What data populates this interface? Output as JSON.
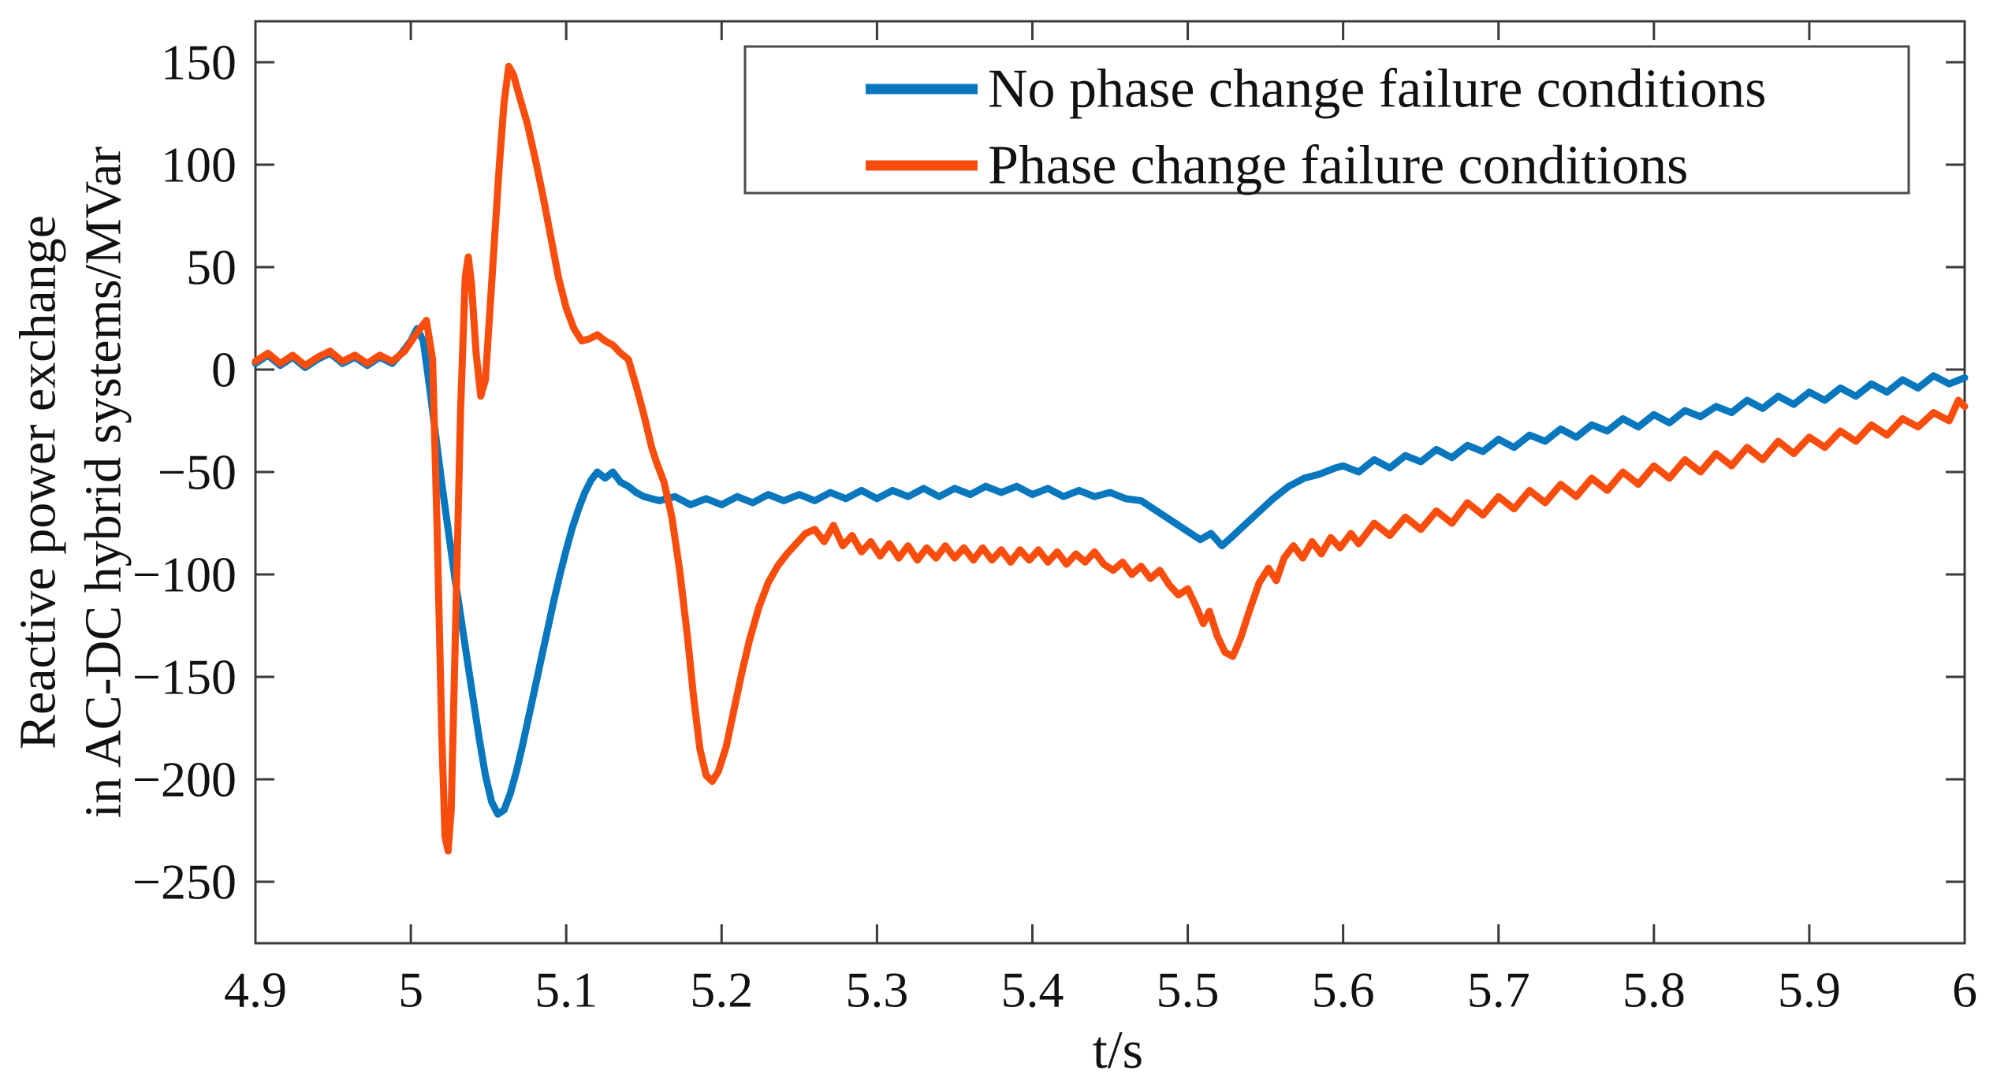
{
  "figure": {
    "background": "#ffffff",
    "frame_color": "#3a3a3a",
    "text_color": "#111111"
  },
  "chart_data": {
    "type": "line",
    "title": "",
    "xlabel": "t/s",
    "ylabel_lines": [
      "Reactive power exchange",
      "in AC-DC hybrid systems/MVar"
    ],
    "xlim": [
      4.9,
      6.0
    ],
    "ylim": [
      -280,
      170
    ],
    "grid": false,
    "legend_position": "top-right-inside",
    "x_ticks": [
      4.9,
      5.0,
      5.1,
      5.2,
      5.3,
      5.4,
      5.5,
      5.6,
      5.7,
      5.8,
      5.9,
      6.0
    ],
    "x_tick_labels": [
      "4.9",
      "5",
      "5.1",
      "5.2",
      "5.3",
      "5.4",
      "5.5",
      "5.6",
      "5.7",
      "5.8",
      "5.9",
      "6"
    ],
    "y_ticks": [
      150,
      100,
      50,
      0,
      -50,
      -100,
      -150,
      -200,
      -250
    ],
    "y_tick_labels": [
      "150",
      "100",
      "50",
      "0",
      "-50",
      "-100",
      "-150",
      "-200",
      "-250"
    ],
    "series": [
      {
        "name": "No phase change failure conditions",
        "color": "#0877BD",
        "points": [
          [
            4.9,
            3
          ],
          [
            4.908,
            7
          ],
          [
            4.916,
            2
          ],
          [
            4.924,
            6
          ],
          [
            4.932,
            1
          ],
          [
            4.94,
            5
          ],
          [
            4.948,
            8
          ],
          [
            4.956,
            3
          ],
          [
            4.964,
            6
          ],
          [
            4.972,
            2
          ],
          [
            4.98,
            6
          ],
          [
            4.988,
            3
          ],
          [
            4.994,
            8
          ],
          [
            5.0,
            14
          ],
          [
            5.004,
            20
          ],
          [
            5.008,
            14
          ],
          [
            5.012,
            -8
          ],
          [
            5.016,
            -32
          ],
          [
            5.02,
            -56
          ],
          [
            5.024,
            -78
          ],
          [
            5.028,
            -100
          ],
          [
            5.032,
            -120
          ],
          [
            5.036,
            -140
          ],
          [
            5.04,
            -160
          ],
          [
            5.044,
            -180
          ],
          [
            5.048,
            -198
          ],
          [
            5.052,
            -211
          ],
          [
            5.056,
            -217
          ],
          [
            5.06,
            -215
          ],
          [
            5.064,
            -207
          ],
          [
            5.068,
            -196
          ],
          [
            5.072,
            -183
          ],
          [
            5.076,
            -169
          ],
          [
            5.08,
            -155
          ],
          [
            5.084,
            -141
          ],
          [
            5.088,
            -127
          ],
          [
            5.092,
            -113
          ],
          [
            5.096,
            -100
          ],
          [
            5.1,
            -88
          ],
          [
            5.104,
            -77
          ],
          [
            5.108,
            -68
          ],
          [
            5.112,
            -60
          ],
          [
            5.116,
            -54
          ],
          [
            5.12,
            -50
          ],
          [
            5.125,
            -53
          ],
          [
            5.13,
            -50
          ],
          [
            5.135,
            -55
          ],
          [
            5.14,
            -57
          ],
          [
            5.145,
            -60
          ],
          [
            5.15,
            -62
          ],
          [
            5.16,
            -64
          ],
          [
            5.17,
            -62
          ],
          [
            5.18,
            -66
          ],
          [
            5.19,
            -63
          ],
          [
            5.2,
            -66
          ],
          [
            5.21,
            -62
          ],
          [
            5.22,
            -65
          ],
          [
            5.23,
            -61
          ],
          [
            5.24,
            -64
          ],
          [
            5.25,
            -61
          ],
          [
            5.26,
            -64
          ],
          [
            5.27,
            -60
          ],
          [
            5.28,
            -63
          ],
          [
            5.29,
            -59
          ],
          [
            5.3,
            -63
          ],
          [
            5.31,
            -59
          ],
          [
            5.32,
            -62
          ],
          [
            5.33,
            -58
          ],
          [
            5.34,
            -62
          ],
          [
            5.35,
            -58
          ],
          [
            5.36,
            -61
          ],
          [
            5.37,
            -57
          ],
          [
            5.38,
            -60
          ],
          [
            5.39,
            -57
          ],
          [
            5.4,
            -61
          ],
          [
            5.41,
            -58
          ],
          [
            5.42,
            -62
          ],
          [
            5.43,
            -59
          ],
          [
            5.44,
            -62
          ],
          [
            5.45,
            -60
          ],
          [
            5.46,
            -63
          ],
          [
            5.47,
            -64
          ],
          [
            5.48,
            -69
          ],
          [
            5.49,
            -74
          ],
          [
            5.5,
            -79
          ],
          [
            5.508,
            -83
          ],
          [
            5.515,
            -80
          ],
          [
            5.522,
            -86
          ],
          [
            5.528,
            -82
          ],
          [
            5.535,
            -77
          ],
          [
            5.545,
            -70
          ],
          [
            5.555,
            -63
          ],
          [
            5.565,
            -57
          ],
          [
            5.575,
            -53
          ],
          [
            5.585,
            -51
          ],
          [
            5.595,
            -48
          ],
          [
            5.6,
            -47
          ],
          [
            5.61,
            -50
          ],
          [
            5.62,
            -44
          ],
          [
            5.63,
            -48
          ],
          [
            5.64,
            -42
          ],
          [
            5.65,
            -45
          ],
          [
            5.66,
            -39
          ],
          [
            5.67,
            -43
          ],
          [
            5.68,
            -37
          ],
          [
            5.69,
            -40
          ],
          [
            5.7,
            -34
          ],
          [
            5.71,
            -38
          ],
          [
            5.72,
            -32
          ],
          [
            5.73,
            -35
          ],
          [
            5.74,
            -29
          ],
          [
            5.75,
            -33
          ],
          [
            5.76,
            -27
          ],
          [
            5.77,
            -30
          ],
          [
            5.78,
            -24
          ],
          [
            5.79,
            -28
          ],
          [
            5.8,
            -22
          ],
          [
            5.81,
            -26
          ],
          [
            5.82,
            -20
          ],
          [
            5.83,
            -23
          ],
          [
            5.84,
            -18
          ],
          [
            5.85,
            -21
          ],
          [
            5.86,
            -15
          ],
          [
            5.87,
            -19
          ],
          [
            5.88,
            -13
          ],
          [
            5.89,
            -17
          ],
          [
            5.9,
            -11
          ],
          [
            5.91,
            -15
          ],
          [
            5.92,
            -9
          ],
          [
            5.93,
            -13
          ],
          [
            5.94,
            -7
          ],
          [
            5.95,
            -11
          ],
          [
            5.96,
            -5
          ],
          [
            5.97,
            -9
          ],
          [
            5.98,
            -3
          ],
          [
            5.99,
            -7
          ],
          [
            6.0,
            -4
          ]
        ]
      },
      {
        "name": "Phase change failure conditions",
        "color": "#F94D0E",
        "points": [
          [
            4.9,
            4
          ],
          [
            4.908,
            8
          ],
          [
            4.916,
            3
          ],
          [
            4.924,
            7
          ],
          [
            4.932,
            2
          ],
          [
            4.94,
            6
          ],
          [
            4.948,
            9
          ],
          [
            4.956,
            4
          ],
          [
            4.964,
            7
          ],
          [
            4.972,
            3
          ],
          [
            4.98,
            7
          ],
          [
            4.988,
            4
          ],
          [
            4.996,
            9
          ],
          [
            5.004,
            18
          ],
          [
            5.01,
            24
          ],
          [
            5.014,
            5
          ],
          [
            5.017,
            -80
          ],
          [
            5.02,
            -180
          ],
          [
            5.022,
            -228
          ],
          [
            5.024,
            -235
          ],
          [
            5.026,
            -215
          ],
          [
            5.029,
            -120
          ],
          [
            5.032,
            -20
          ],
          [
            5.035,
            45
          ],
          [
            5.037,
            55
          ],
          [
            5.039,
            42
          ],
          [
            5.042,
            8
          ],
          [
            5.045,
            -13
          ],
          [
            5.048,
            -5
          ],
          [
            5.051,
            30
          ],
          [
            5.054,
            65
          ],
          [
            5.057,
            100
          ],
          [
            5.06,
            130
          ],
          [
            5.063,
            148
          ],
          [
            5.066,
            144
          ],
          [
            5.07,
            133
          ],
          [
            5.075,
            120
          ],
          [
            5.08,
            103
          ],
          [
            5.085,
            85
          ],
          [
            5.09,
            65
          ],
          [
            5.095,
            45
          ],
          [
            5.1,
            30
          ],
          [
            5.105,
            20
          ],
          [
            5.11,
            14
          ],
          [
            5.115,
            15
          ],
          [
            5.12,
            17
          ],
          [
            5.125,
            14
          ],
          [
            5.13,
            12
          ],
          [
            5.135,
            8
          ],
          [
            5.14,
            5
          ],
          [
            5.145,
            -8
          ],
          [
            5.15,
            -22
          ],
          [
            5.155,
            -38
          ],
          [
            5.158,
            -45
          ],
          [
            5.163,
            -55
          ],
          [
            5.168,
            -72
          ],
          [
            5.173,
            -98
          ],
          [
            5.178,
            -130
          ],
          [
            5.182,
            -160
          ],
          [
            5.186,
            -185
          ],
          [
            5.19,
            -198
          ],
          [
            5.194,
            -201
          ],
          [
            5.198,
            -196
          ],
          [
            5.203,
            -184
          ],
          [
            5.208,
            -166
          ],
          [
            5.213,
            -148
          ],
          [
            5.218,
            -132
          ],
          [
            5.224,
            -116
          ],
          [
            5.23,
            -104
          ],
          [
            5.236,
            -96
          ],
          [
            5.242,
            -90
          ],
          [
            5.248,
            -85
          ],
          [
            5.254,
            -80
          ],
          [
            5.26,
            -78
          ],
          [
            5.266,
            -84
          ],
          [
            5.272,
            -76
          ],
          [
            5.278,
            -86
          ],
          [
            5.284,
            -81
          ],
          [
            5.29,
            -89
          ],
          [
            5.296,
            -84
          ],
          [
            5.302,
            -91
          ],
          [
            5.308,
            -85
          ],
          [
            5.314,
            -92
          ],
          [
            5.32,
            -86
          ],
          [
            5.326,
            -93
          ],
          [
            5.332,
            -87
          ],
          [
            5.338,
            -92
          ],
          [
            5.344,
            -86
          ],
          [
            5.35,
            -92
          ],
          [
            5.356,
            -87
          ],
          [
            5.362,
            -93
          ],
          [
            5.368,
            -87
          ],
          [
            5.374,
            -93
          ],
          [
            5.38,
            -88
          ],
          [
            5.386,
            -94
          ],
          [
            5.392,
            -88
          ],
          [
            5.398,
            -93
          ],
          [
            5.404,
            -88
          ],
          [
            5.41,
            -94
          ],
          [
            5.416,
            -89
          ],
          [
            5.422,
            -95
          ],
          [
            5.428,
            -90
          ],
          [
            5.434,
            -94
          ],
          [
            5.44,
            -89
          ],
          [
            5.446,
            -95
          ],
          [
            5.452,
            -98
          ],
          [
            5.458,
            -94
          ],
          [
            5.464,
            -100
          ],
          [
            5.47,
            -96
          ],
          [
            5.476,
            -102
          ],
          [
            5.482,
            -98
          ],
          [
            5.488,
            -105
          ],
          [
            5.494,
            -110
          ],
          [
            5.5,
            -107
          ],
          [
            5.505,
            -115
          ],
          [
            5.51,
            -124
          ],
          [
            5.514,
            -118
          ],
          [
            5.519,
            -130
          ],
          [
            5.524,
            -138
          ],
          [
            5.529,
            -140
          ],
          [
            5.534,
            -131
          ],
          [
            5.54,
            -117
          ],
          [
            5.546,
            -104
          ],
          [
            5.552,
            -97
          ],
          [
            5.557,
            -103
          ],
          [
            5.562,
            -92
          ],
          [
            5.568,
            -86
          ],
          [
            5.574,
            -92
          ],
          [
            5.58,
            -84
          ],
          [
            5.586,
            -90
          ],
          [
            5.592,
            -82
          ],
          [
            5.598,
            -87
          ],
          [
            5.605,
            -80
          ],
          [
            5.61,
            -85
          ],
          [
            5.62,
            -75
          ],
          [
            5.63,
            -81
          ],
          [
            5.64,
            -72
          ],
          [
            5.65,
            -78
          ],
          [
            5.66,
            -69
          ],
          [
            5.67,
            -75
          ],
          [
            5.68,
            -65
          ],
          [
            5.69,
            -71
          ],
          [
            5.7,
            -62
          ],
          [
            5.71,
            -68
          ],
          [
            5.72,
            -59
          ],
          [
            5.73,
            -65
          ],
          [
            5.74,
            -56
          ],
          [
            5.75,
            -62
          ],
          [
            5.76,
            -53
          ],
          [
            5.77,
            -59
          ],
          [
            5.78,
            -50
          ],
          [
            5.79,
            -56
          ],
          [
            5.8,
            -47
          ],
          [
            5.81,
            -53
          ],
          [
            5.82,
            -44
          ],
          [
            5.83,
            -50
          ],
          [
            5.84,
            -41
          ],
          [
            5.85,
            -47
          ],
          [
            5.86,
            -38
          ],
          [
            5.87,
            -44
          ],
          [
            5.88,
            -35
          ],
          [
            5.89,
            -41
          ],
          [
            5.9,
            -33
          ],
          [
            5.91,
            -38
          ],
          [
            5.92,
            -30
          ],
          [
            5.93,
            -35
          ],
          [
            5.94,
            -27
          ],
          [
            5.95,
            -32
          ],
          [
            5.96,
            -24
          ],
          [
            5.97,
            -28
          ],
          [
            5.98,
            -21
          ],
          [
            5.99,
            -25
          ],
          [
            5.996,
            -15
          ],
          [
            6.0,
            -18
          ]
        ]
      }
    ]
  },
  "legend": {
    "entries": [
      {
        "label": "No phase change failure conditions",
        "color": "#0877BD"
      },
      {
        "label": "Phase change failure conditions",
        "color": "#F94D0E"
      }
    ]
  }
}
